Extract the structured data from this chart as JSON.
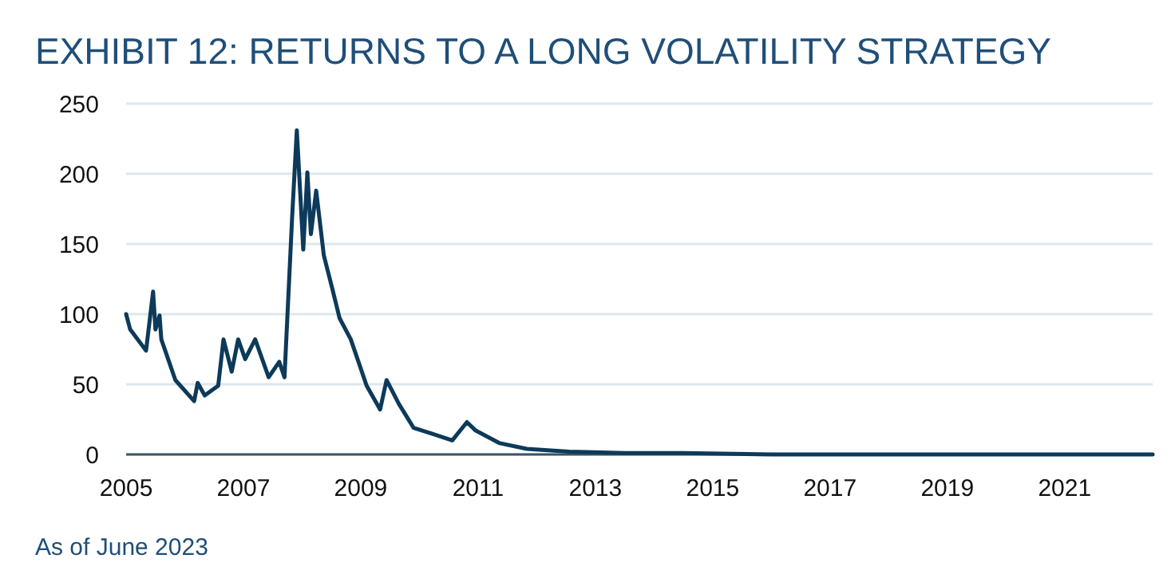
{
  "chart_data": {
    "type": "line",
    "title": "EXHIBIT 12: RETURNS TO A LONG VOLATILITY STRATEGY",
    "annotations": [
      "As of June 2023"
    ],
    "x": [
      2005,
      2005.07,
      2005.34,
      2005.46,
      2005.5,
      2005.57,
      2005.6,
      2005.84,
      2006.16,
      2006.22,
      2006.34,
      2006.57,
      2006.66,
      2006.8,
      2006.91,
      2007.03,
      2007.2,
      2007.43,
      2007.61,
      2007.7,
      2007.83,
      2007.91,
      2008.02,
      2008.09,
      2008.15,
      2008.24,
      2008.37,
      2008.51,
      2008.64,
      2008.83,
      2009.1,
      2009.33,
      2009.44,
      2009.65,
      2009.9,
      2010.2,
      2010.56,
      2010.81,
      2010.96,
      2011.37,
      2011.83,
      2012.55,
      2013.5,
      2014.5,
      2016,
      2018,
      2020,
      2022.5
    ],
    "series": [
      {
        "color": "#0d3a5a",
        "values": [
          100,
          89,
          74,
          116,
          89,
          99,
          82,
          53,
          38,
          51,
          42,
          49,
          82,
          59,
          82,
          68,
          82,
          55,
          66,
          55,
          169,
          231,
          146,
          201,
          157,
          188,
          142,
          119,
          97,
          82,
          49,
          32,
          53,
          36,
          19,
          15,
          10,
          23,
          17,
          8,
          4,
          2,
          1,
          1,
          0,
          0,
          0,
          0
        ]
      }
    ],
    "xlim": [
      2005,
      2022.5
    ],
    "xticks": [
      2005,
      2007,
      2009,
      2011,
      2013,
      2015,
      2017,
      2019,
      2021
    ],
    "ylim": [
      0,
      250
    ],
    "yticks": [
      0,
      50,
      100,
      150,
      200,
      250
    ],
    "grid": "y",
    "line_style": "solid",
    "marker": "none"
  }
}
